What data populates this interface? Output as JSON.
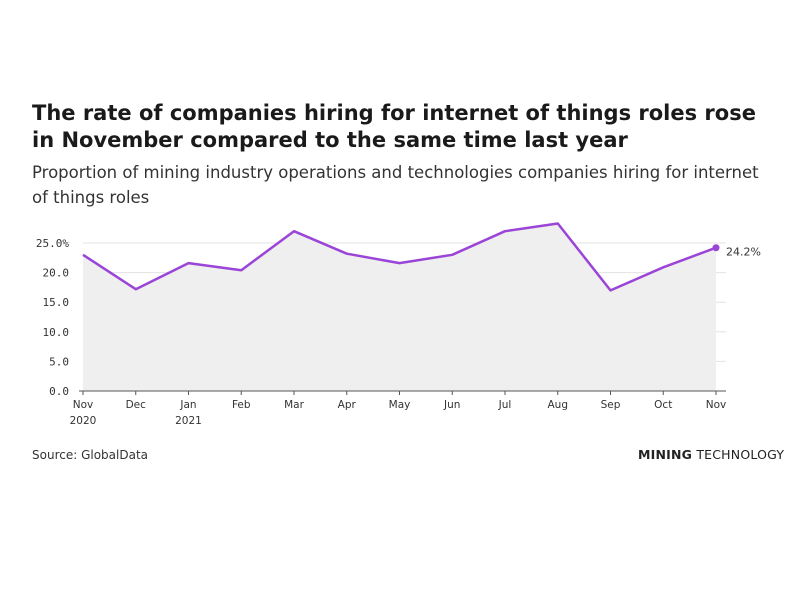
{
  "title": "The rate of companies hiring for internet of things roles rose in November compared to the same time last year",
  "subtitle": "Proportion of mining industry operations and technologies companies hiring for internet of things roles",
  "source": "Source: GlobalData",
  "brand": {
    "part1": "MINING",
    "part2": "TECHNOLOGY"
  },
  "colors": {
    "line": "#9b44d8",
    "area": "#efefef",
    "grid": "#e3e3e3",
    "axis": "#555555"
  },
  "chart_data": {
    "type": "area",
    "x": [
      "Nov",
      "Dec",
      "Jan",
      "Feb",
      "Mar",
      "Apr",
      "May",
      "Jun",
      "Jul",
      "Aug",
      "Sep",
      "Oct",
      "Nov"
    ],
    "x_sublabels": [
      "2020",
      "",
      "2021",
      "",
      "",
      "",
      "",
      "",
      "",
      "",
      "",
      "",
      ""
    ],
    "series": [
      {
        "values": [
          23.0,
          17.2,
          21.6,
          20.4,
          27.0,
          23.2,
          21.6,
          23.0,
          27.0,
          28.3,
          17.0,
          20.9,
          24.2
        ]
      }
    ],
    "ylim": [
      0,
      25
    ],
    "yticks": [
      0,
      5,
      10,
      15,
      20,
      25
    ],
    "ytick_labels": [
      "0.0",
      "5.0",
      "10.0",
      "15.0",
      "20.0",
      "25.0%"
    ],
    "end_label": "24.2%",
    "grid": true
  }
}
